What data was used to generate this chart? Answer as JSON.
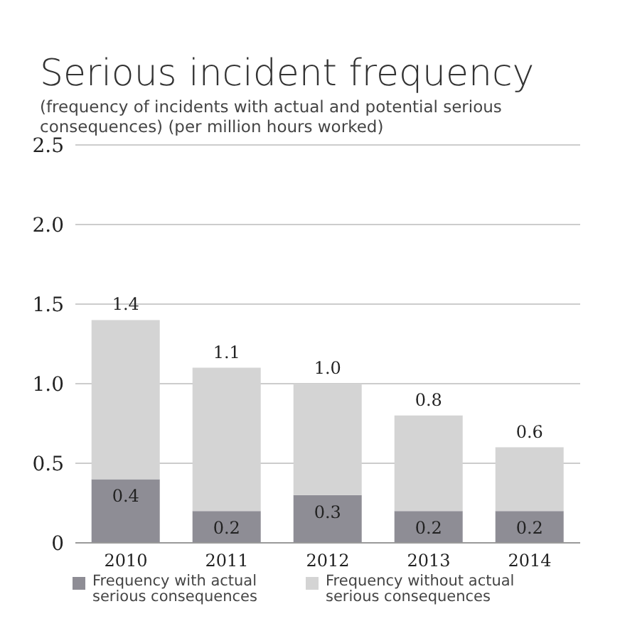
{
  "chart_data": {
    "type": "bar",
    "title": "Serious incident frequency",
    "subtitle": "(frequency of incidents with actual and potential serious consequences) (per million hours worked)",
    "categories": [
      "2010",
      "2011",
      "2012",
      "2013",
      "2014"
    ],
    "series": [
      {
        "name": "Frequency with actual serious consequences",
        "color": "#8e8d95",
        "values": [
          0.4,
          0.2,
          0.3,
          0.2,
          0.2
        ],
        "value_labels": [
          "0.4",
          "0.2",
          "0.3",
          "0.2",
          "0.2"
        ]
      },
      {
        "name": "Frequency without actual serious consequences",
        "color": "#d4d4d4",
        "values": [
          1.0,
          0.9,
          0.7,
          0.6,
          0.4
        ]
      }
    ],
    "stacked": true,
    "totals": [
      "1.4",
      "1.1",
      "1.0",
      "0.8",
      "0.6"
    ],
    "ylim": [
      0,
      2.5
    ],
    "yticks": [
      0,
      0.5,
      {
        "value": 1,
        "label": "1.0"
      },
      1.5,
      {
        "value": 2,
        "label": "2.0"
      },
      2.5
    ],
    "grid": "y",
    "legend": "bottom"
  }
}
